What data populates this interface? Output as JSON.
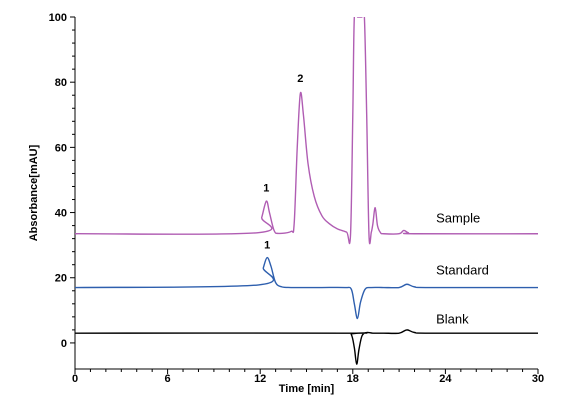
{
  "chart_data": {
    "type": "line",
    "title": "",
    "xlabel": "Time [min]",
    "ylabel": "Absorbance[mAU]",
    "xlim": [
      0,
      30
    ],
    "ylim": [
      -8,
      100
    ],
    "x_ticks": [
      0,
      6,
      12,
      18,
      24,
      30
    ],
    "x_tick_labels": [
      "0",
      "6",
      "12",
      "18",
      "24",
      "30"
    ],
    "y_ticks": [
      0,
      20,
      40,
      60,
      80,
      100
    ],
    "y_tick_labels": [
      "0",
      "20",
      "40",
      "60",
      "80",
      "100"
    ],
    "grid": false,
    "series": [
      {
        "name": "Sample",
        "color": "#b05db3",
        "baseline": 33.5,
        "x": [
          0,
          11.8,
          12.1,
          12.4,
          12.6,
          12.9,
          13.2,
          14.0,
          14.2,
          14.4,
          14.6,
          14.8,
          15.1,
          15.5,
          16.0,
          16.5,
          17.0,
          17.6,
          17.85,
          18.0,
          18.1,
          18.3,
          18.45,
          18.6,
          18.75,
          18.9,
          19.05,
          19.2,
          19.3,
          19.45,
          19.6,
          19.8,
          20.0,
          21.0,
          21.3,
          21.6,
          22.0,
          30
        ],
        "y": [
          33.5,
          33.8,
          38.5,
          43.5,
          40.0,
          34.5,
          33.6,
          34.2,
          36.5,
          60.0,
          76.5,
          70.0,
          55.0,
          45.0,
          39.0,
          36.5,
          35.0,
          34.0,
          33.0,
          70.0,
          100.0,
          100.0,
          100.0,
          100.0,
          100.0,
          70.0,
          33.0,
          34.0,
          36.5,
          41.5,
          36.0,
          33.8,
          33.5,
          33.5,
          34.5,
          33.8,
          33.5,
          33.5
        ]
      },
      {
        "name": "Standard",
        "color": "#2e5fae",
        "baseline": 17.0,
        "x": [
          0,
          11.9,
          12.2,
          12.45,
          12.7,
          13.0,
          13.4,
          14.0,
          15.0,
          16.0,
          17.5,
          17.9,
          18.1,
          18.3,
          18.5,
          18.8,
          19.2,
          20.0,
          21.0,
          21.5,
          22.0,
          23.0,
          30
        ],
        "y": [
          17.0,
          17.8,
          23.0,
          26.2,
          23.5,
          18.5,
          17.2,
          17.0,
          17.0,
          17.0,
          17.0,
          16.5,
          12.0,
          7.5,
          12.5,
          16.5,
          17.0,
          17.0,
          17.0,
          18.0,
          17.2,
          17.0,
          17.0
        ]
      },
      {
        "name": "Blank",
        "color": "#000000",
        "baseline": 3.0,
        "x": [
          0,
          17.5,
          17.9,
          18.1,
          18.25,
          18.4,
          18.6,
          18.9,
          19.3,
          20.0,
          21.0,
          21.5,
          22.0,
          23.0,
          30
        ],
        "y": [
          3.0,
          3.0,
          2.6,
          -1.5,
          -6.5,
          -2.0,
          2.2,
          3.2,
          3.0,
          3.0,
          3.0,
          4.0,
          3.2,
          3.0,
          3.0
        ]
      }
    ],
    "annotations": [
      {
        "text": "1",
        "x": 12.4,
        "y": 46.5
      },
      {
        "text": "2",
        "x": 14.6,
        "y": 80.0
      },
      {
        "text": "1",
        "x": 12.45,
        "y": 29.0
      },
      {
        "text": "Sample",
        "x": 23.4,
        "y": 37.0
      },
      {
        "text": "Standard",
        "x": 23.4,
        "y": 21.0
      },
      {
        "text": "Blank",
        "x": 23.4,
        "y": 6.0
      }
    ]
  }
}
